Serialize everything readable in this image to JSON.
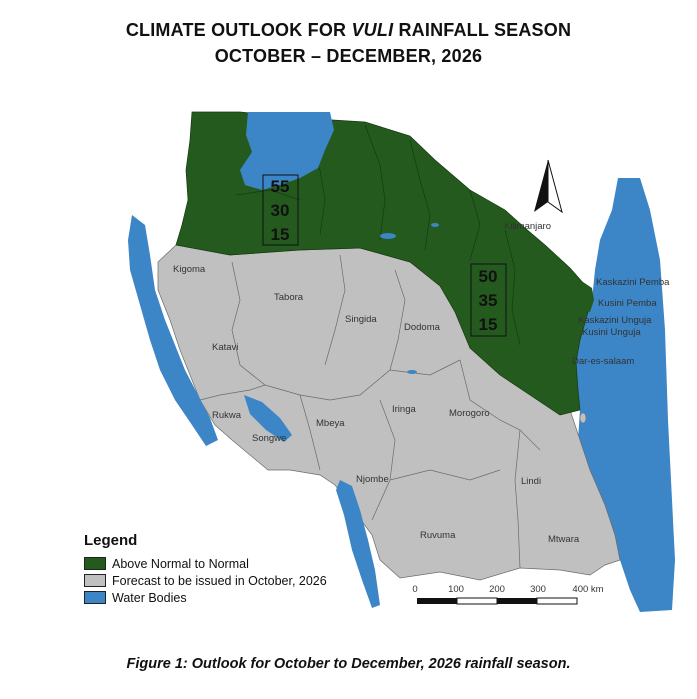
{
  "title": {
    "line1_prefix": "CLIMATE OUTLOOK FOR ",
    "line1_italic": "VULI",
    "line1_suffix": " RAINFALL SEASON",
    "line2": "OCTOBER – DECEMBER, 2026"
  },
  "colors": {
    "above_normal": "#245a1e",
    "forecast_later": "#c0c0c0",
    "water": "#3c85c6"
  },
  "regions": {
    "kigoma": "Kigoma",
    "tabora": "Tabora",
    "singida": "Singida",
    "dodoma": "Dodoma",
    "katavi": "Katavi",
    "rukwa": "Rukwa",
    "songwe": "Songwe",
    "mbeya": "Mbeya",
    "iringa": "Iringa",
    "morogoro": "Morogoro",
    "njombe": "Njombe",
    "lindi": "Lindi",
    "ruvuma": "Ruvuma",
    "mtwara": "Mtwara",
    "kilimanjaro": "Kilimanjaro",
    "kaskazini_pemba": "Kaskazini Pemba",
    "kusini_pemba": "Kusini Pemba",
    "kaskazini_unguja": "Kaskazini Unguja",
    "kusini_unguja": "Kusini Unguja",
    "dar": "Dar-es-salaam"
  },
  "probability_boxes": [
    {
      "above": "55",
      "normal": "30",
      "below": "15"
    },
    {
      "above": "50",
      "normal": "35",
      "below": "15"
    }
  ],
  "scale_bar": {
    "ticks": [
      "0",
      "100",
      "200",
      "300",
      "400 km"
    ]
  },
  "legend": {
    "heading": "Legend",
    "items": [
      {
        "label": "Above Normal to Normal"
      },
      {
        "label": "Forecast to be issued in October, 2026"
      },
      {
        "label": "Water Bodies"
      }
    ]
  },
  "caption": "Figure 1: Outlook for October to December, 2026 rainfall season."
}
